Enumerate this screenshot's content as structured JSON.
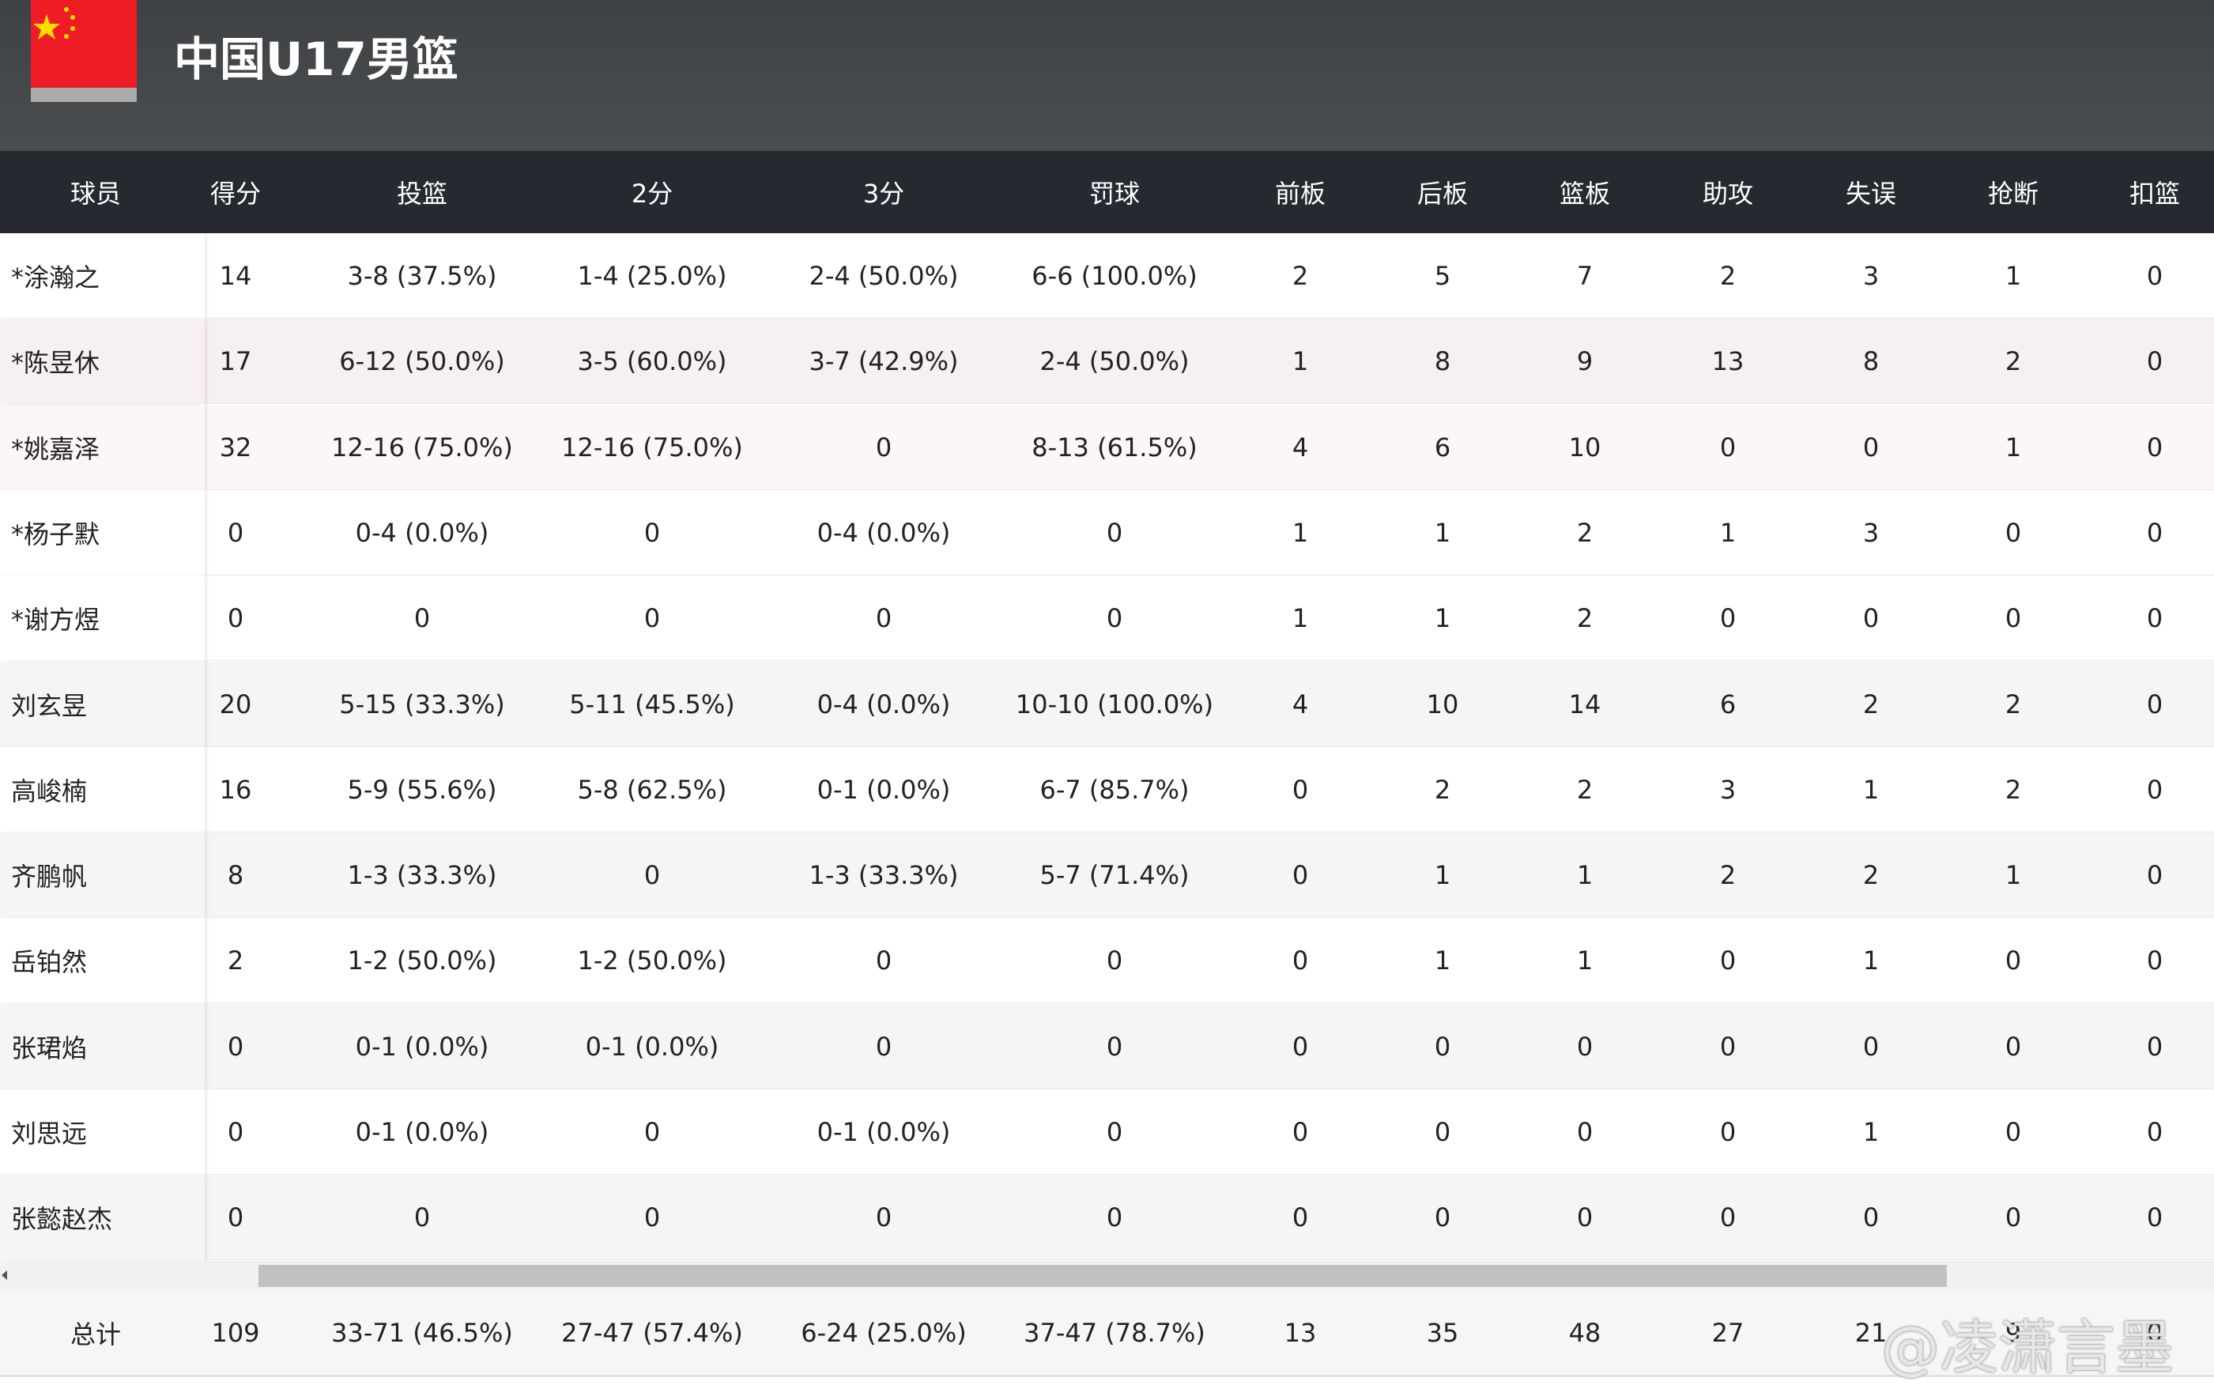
{
  "header": {
    "title": "中国U17男篮"
  },
  "table": {
    "columns": [
      "球员",
      "得分",
      "投篮",
      "2分",
      "3分",
      "罚球",
      "前板",
      "后板",
      "篮板",
      "助攻",
      "失误",
      "抢断",
      "扣篮"
    ],
    "rows": [
      [
        "*涂瀚之",
        "14",
        "3-8 (37.5%)",
        "1-4 (25.0%)",
        "2-4 (50.0%)",
        "6-6 (100.0%)",
        "2",
        "5",
        "7",
        "2",
        "3",
        "1",
        "0"
      ],
      [
        "*陈昱休",
        "17",
        "6-12 (50.0%)",
        "3-5 (60.0%)",
        "3-7 (42.9%)",
        "2-4 (50.0%)",
        "1",
        "8",
        "9",
        "13",
        "8",
        "2",
        "0"
      ],
      [
        "*姚嘉泽",
        "32",
        "12-16 (75.0%)",
        "12-16 (75.0%)",
        "0",
        "8-13 (61.5%)",
        "4",
        "6",
        "10",
        "0",
        "0",
        "1",
        "0"
      ],
      [
        "*杨子默",
        "0",
        "0-4 (0.0%)",
        "0",
        "0-4 (0.0%)",
        "0",
        "1",
        "1",
        "2",
        "1",
        "3",
        "0",
        "0"
      ],
      [
        "*谢方煜",
        "0",
        "0",
        "0",
        "0",
        "0",
        "1",
        "1",
        "2",
        "0",
        "0",
        "0",
        "0"
      ],
      [
        "刘玄昱",
        "20",
        "5-15 (33.3%)",
        "5-11 (45.5%)",
        "0-4 (0.0%)",
        "10-10 (100.0%)",
        "4",
        "10",
        "14",
        "6",
        "2",
        "2",
        "0"
      ],
      [
        "高峻楠",
        "16",
        "5-9 (55.6%)",
        "5-8 (62.5%)",
        "0-1 (0.0%)",
        "6-7 (85.7%)",
        "0",
        "2",
        "2",
        "3",
        "1",
        "2",
        "0"
      ],
      [
        "齐鹏帆",
        "8",
        "1-3 (33.3%)",
        "0",
        "1-3 (33.3%)",
        "5-7 (71.4%)",
        "0",
        "1",
        "1",
        "2",
        "2",
        "1",
        "0"
      ],
      [
        "岳铂然",
        "2",
        "1-2 (50.0%)",
        "1-2 (50.0%)",
        "0",
        "0",
        "0",
        "1",
        "1",
        "0",
        "1",
        "0",
        "0"
      ],
      [
        "张珺焰",
        "0",
        "0-1 (0.0%)",
        "0-1 (0.0%)",
        "0",
        "0",
        "0",
        "0",
        "0",
        "0",
        "0",
        "0",
        "0"
      ],
      [
        "刘思远",
        "0",
        "0-1 (0.0%)",
        "0",
        "0-1 (0.0%)",
        "0",
        "0",
        "0",
        "0",
        "0",
        "1",
        "0",
        "0"
      ],
      [
        "张懿赵杰",
        "0",
        "0",
        "0",
        "0",
        "0",
        "0",
        "0",
        "0",
        "0",
        "0",
        "0",
        "0"
      ]
    ],
    "total": [
      "总计",
      "109",
      "33-71 (46.5%)",
      "27-47 (57.4%)",
      "6-24 (25.0%)",
      "37-47 (78.7%)",
      "13",
      "35",
      "48",
      "27",
      "21",
      "9",
      "0"
    ]
  },
  "watermark": "@凌潇言墨"
}
